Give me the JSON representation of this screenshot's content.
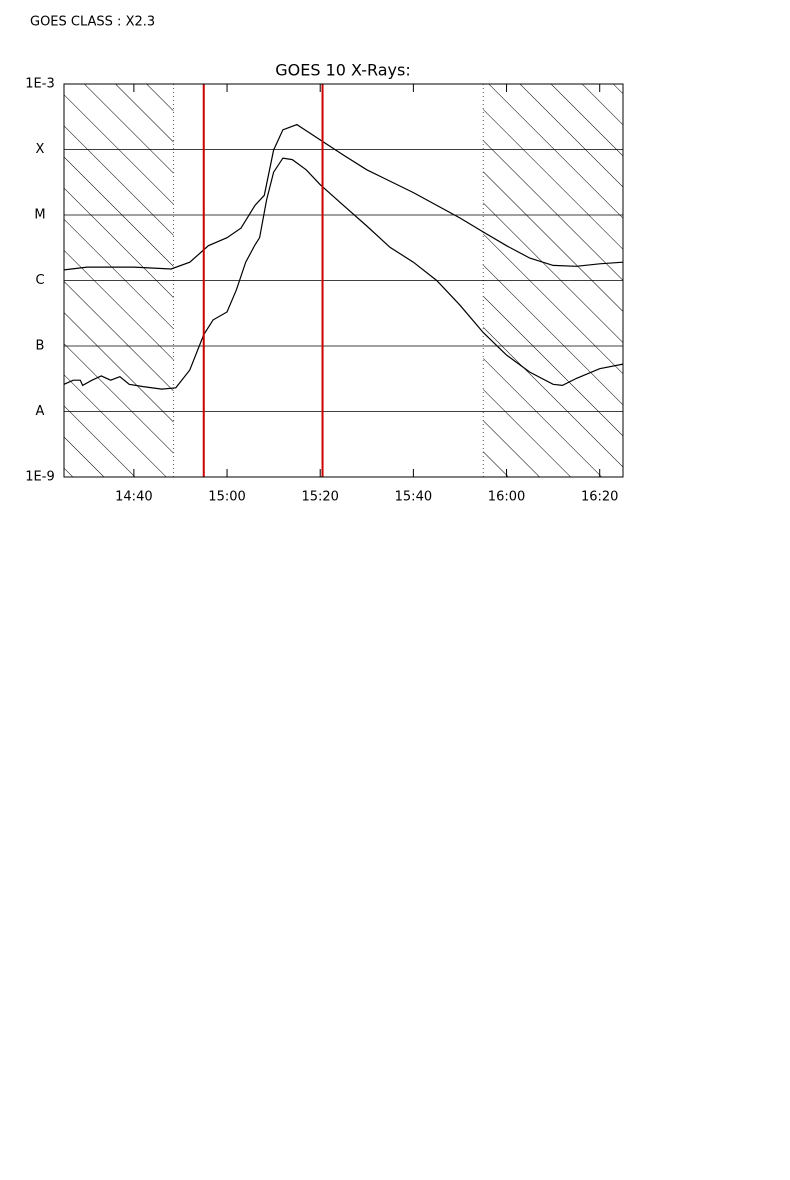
{
  "chart_data": {
    "type": "line",
    "header": "GOES CLASS : X2.3",
    "title": "GOES 10 X-Rays:",
    "log_y": true,
    "grid": true,
    "xlim": [
      865,
      985
    ],
    "xticks": [
      {
        "value": 880,
        "label": "14:40"
      },
      {
        "value": 900,
        "label": "15:00"
      },
      {
        "value": 920,
        "label": "15:20"
      },
      {
        "value": 940,
        "label": "15:40"
      },
      {
        "value": 960,
        "label": "16:00"
      },
      {
        "value": 980,
        "label": "16:20"
      }
    ],
    "ylim": [
      1e-09,
      0.001
    ],
    "yticks": [
      {
        "value": 1e-09,
        "label": "1E-9"
      },
      {
        "value": 1e-08,
        "label": "A"
      },
      {
        "value": 1e-07,
        "label": "B"
      },
      {
        "value": 1e-06,
        "label": "C"
      },
      {
        "value": 1e-05,
        "label": "M"
      },
      {
        "value": 0.0001,
        "label": "X"
      },
      {
        "value": 0.001,
        "label": "1E-3"
      }
    ],
    "shaded_ranges": [
      [
        865,
        888.5
      ],
      [
        955,
        985
      ]
    ],
    "markers": [
      895,
      920.5
    ],
    "marker_color": "#cc0000",
    "series": [
      {
        "color": "#000000",
        "x": [
          865,
          870,
          880,
          888,
          892,
          896,
          900,
          903,
          906,
          908,
          910,
          912,
          915,
          920,
          925,
          930,
          940,
          950,
          955,
          960,
          965,
          970,
          975,
          980,
          985
        ],
        "values": [
          1.45e-06,
          1.6e-06,
          1.6e-06,
          1.5e-06,
          1.9e-06,
          3.4e-06,
          4.5e-06,
          6.3e-06,
          1.4e-05,
          2e-05,
          9.8e-05,
          0.0002,
          0.00024,
          0.00014,
          8.2e-05,
          4.9e-05,
          2.2e-05,
          9e-06,
          5.5e-06,
          3.4e-06,
          2.2e-06,
          1.7e-06,
          1.65e-06,
          1.8e-06,
          1.9e-06
        ]
      },
      {
        "color": "#000000",
        "x": [
          865,
          867,
          868.5,
          869,
          871,
          873,
          875,
          877,
          879,
          882,
          886,
          889,
          892,
          895,
          897,
          900,
          902,
          904,
          906,
          907,
          908.5,
          910,
          912,
          914,
          917,
          920,
          925,
          930,
          935,
          940,
          945,
          950,
          955,
          960,
          965,
          970,
          972,
          975,
          980,
          985
        ],
        "values": [
          2.6e-08,
          3e-08,
          3e-08,
          2.5e-08,
          3e-08,
          3.5e-08,
          3e-08,
          3.4e-08,
          2.6e-08,
          2.4e-08,
          2.2e-08,
          2.3e-08,
          4.3e-08,
          1.5e-07,
          2.5e-07,
          3.3e-07,
          7.2e-07,
          1.9e-06,
          3.5e-06,
          4.5e-06,
          1.7e-05,
          4.5e-05,
          7.4e-05,
          7e-05,
          4.9e-05,
          2.9e-05,
          1.4e-05,
          6.8e-06,
          3.2e-06,
          1.9e-06,
          1e-06,
          4.2e-07,
          1.6e-07,
          7.3e-08,
          4e-08,
          2.6e-08,
          2.5e-08,
          3.2e-08,
          4.5e-08,
          5.3e-08
        ]
      }
    ]
  }
}
